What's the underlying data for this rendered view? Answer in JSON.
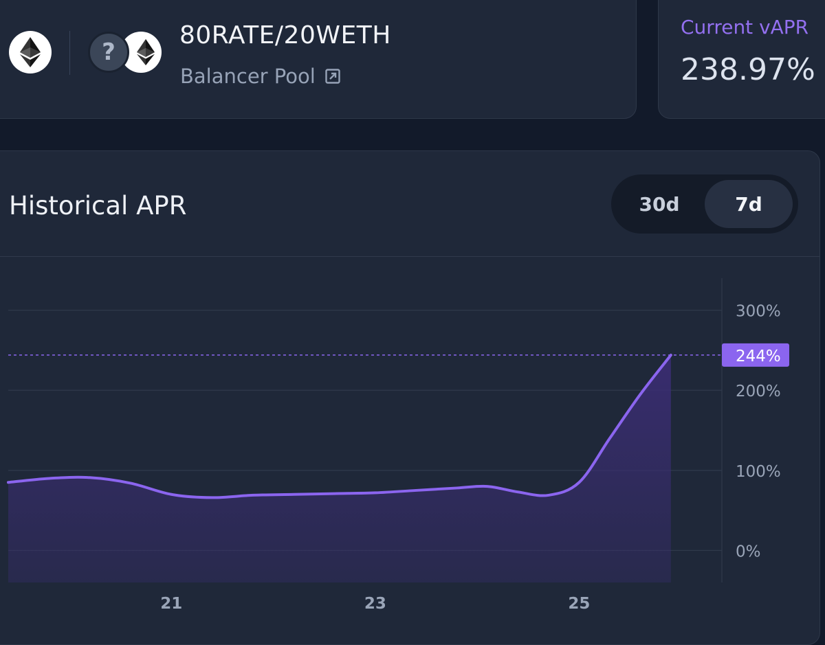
{
  "pool": {
    "name": "80RATE/20WETH",
    "type_label": "Balancer Pool",
    "chain_icon": "ethereum-icon",
    "tokens": [
      {
        "symbol_glyph": "?",
        "icon": "unknown-token-icon"
      },
      {
        "icon": "ethereum-icon"
      }
    ]
  },
  "current_apr": {
    "label": "Current vAPR",
    "value": "238.97%"
  },
  "historical": {
    "title": "Historical APR",
    "ranges": [
      {
        "label": "30d",
        "selected": false
      },
      {
        "label": "7d",
        "selected": true
      }
    ]
  },
  "chart_data": {
    "type": "area",
    "x": [
      19.4,
      19.8,
      20.2,
      20.6,
      21.0,
      21.4,
      21.8,
      22.2,
      22.6,
      23.0,
      23.4,
      23.8,
      24.1,
      24.4,
      24.7,
      25.0,
      25.3,
      25.6,
      25.9
    ],
    "y": [
      85,
      90,
      91,
      84,
      70,
      66,
      69,
      70,
      71,
      72,
      75,
      78,
      80,
      73,
      69,
      85,
      140,
      195,
      244
    ],
    "x_ticks": [
      "21",
      "23",
      "25"
    ],
    "x_tick_values": [
      21,
      23,
      25
    ],
    "y_ticks": [
      "0%",
      "100%",
      "200%",
      "300%"
    ],
    "y_tick_values": [
      0,
      100,
      200,
      300
    ],
    "ylim": [
      -40,
      340
    ],
    "xlim": [
      19.4,
      26.4
    ],
    "last_value_label": "244%",
    "line_color": "#8b65ef",
    "fill_color": "#3a2d72",
    "grid": true
  }
}
